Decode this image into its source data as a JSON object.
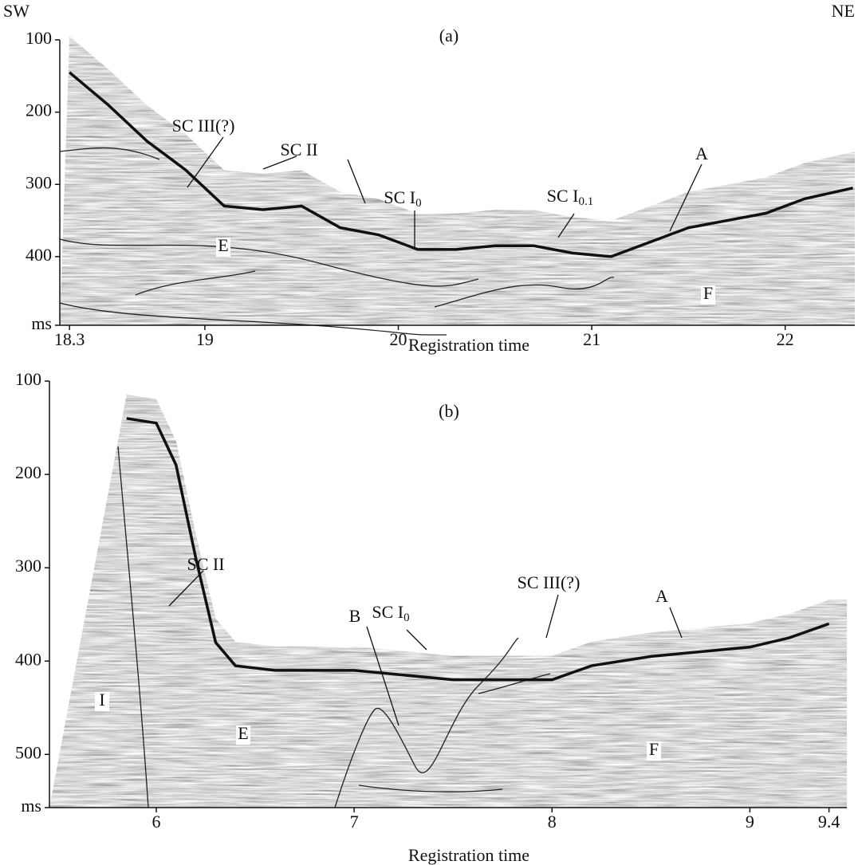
{
  "chart_data": [
    {
      "type": "profile",
      "panel_label": "(a)",
      "left_label": "SW",
      "right_label": "NE",
      "x_label": "Registration time",
      "xlim": [
        18.25,
        22.36
      ],
      "xticks": [
        18.3,
        19,
        20,
        21,
        22
      ],
      "ylim": [
        100,
        495
      ],
      "yticks": [
        100,
        200,
        300,
        400,
        {
          "value": 495,
          "label": "ms"
        }
      ],
      "x": [
        18.3,
        18.5,
        18.7,
        18.9,
        19.1,
        19.3,
        19.5,
        19.7,
        19.9,
        20.1,
        20.3,
        20.5,
        20.7,
        20.9,
        21.1,
        21.3,
        21.5,
        21.7,
        21.9,
        22.1,
        22.35
      ],
      "series": [
        {
          "color": "#111111",
          "values": [
            145,
            190,
            240,
            280,
            330,
            335,
            330,
            360,
            370,
            390,
            390,
            385,
            385,
            395,
            400,
            380,
            360,
            350,
            340,
            320,
            305
          ]
        }
      ],
      "annotations": [
        {
          "text": "SC III(?)"
        },
        {
          "text": "SC II"
        },
        {
          "text": "SC I",
          "sub": "0"
        },
        {
          "text": "SC I",
          "sub": "0.1"
        },
        {
          "text": "A"
        },
        {
          "text": "E"
        },
        {
          "text": "F"
        }
      ]
    },
    {
      "type": "profile",
      "panel_label": "(b)",
      "x_label": "Registration time",
      "xlim": [
        5.46,
        9.49
      ],
      "xticks": [
        6,
        7,
        8,
        9,
        9.4
      ],
      "ylim": [
        100,
        557
      ],
      "yticks": [
        100,
        200,
        300,
        400,
        500,
        {
          "value": 557,
          "label": "ms"
        }
      ],
      "x": [
        5.85,
        6.0,
        6.1,
        6.2,
        6.3,
        6.4,
        6.6,
        7.0,
        7.5,
        8.0,
        8.2,
        8.5,
        9.0,
        9.2,
        9.4
      ],
      "series": [
        {
          "color": "#111111",
          "values": [
            140,
            145,
            190,
            290,
            380,
            405,
            410,
            410,
            420,
            420,
            405,
            395,
            385,
            375,
            360
          ]
        }
      ],
      "annotations": [
        {
          "text": "SC II"
        },
        {
          "text": "B"
        },
        {
          "text": "SC I",
          "sub": "0"
        },
        {
          "text": "SC III(?)"
        },
        {
          "text": "A"
        },
        {
          "text": "I"
        },
        {
          "text": "E"
        },
        {
          "text": "F"
        }
      ]
    }
  ]
}
